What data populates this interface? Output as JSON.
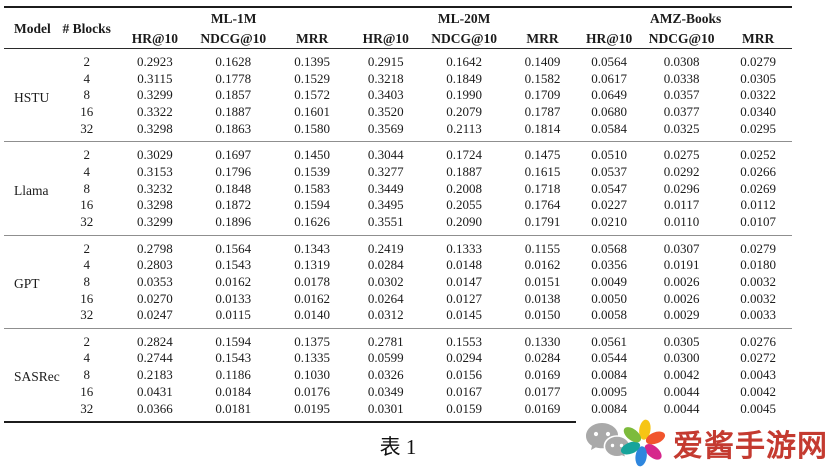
{
  "table": {
    "caption": "表 1",
    "header": {
      "model": "Model",
      "blocks": "# Blocks"
    },
    "datasets": [
      "ML-1M",
      "ML-20M",
      "AMZ-Books"
    ],
    "metrics": [
      "HR@10",
      "NDCG@10",
      "MRR"
    ],
    "groups": [
      {
        "model": "HSTU",
        "rows": [
          {
            "blocks": "2",
            "values": [
              "0.2923",
              "0.1628",
              "0.1395",
              "0.2915",
              "0.1642",
              "0.1409",
              "0.0564",
              "0.0308",
              "0.0279"
            ]
          },
          {
            "blocks": "4",
            "values": [
              "0.3115",
              "0.1778",
              "0.1529",
              "0.3218",
              "0.1849",
              "0.1582",
              "0.0617",
              "0.0338",
              "0.0305"
            ]
          },
          {
            "blocks": "8",
            "values": [
              "0.3299",
              "0.1857",
              "0.1572",
              "0.3403",
              "0.1990",
              "0.1709",
              "0.0649",
              "0.0357",
              "0.0322"
            ]
          },
          {
            "blocks": "16",
            "values": [
              "0.3322",
              "0.1887",
              "0.1601",
              "0.3520",
              "0.2079",
              "0.1787",
              "0.0680",
              "0.0377",
              "0.0340"
            ]
          },
          {
            "blocks": "32",
            "values": [
              "0.3298",
              "0.1863",
              "0.1580",
              "0.3569",
              "0.2113",
              "0.1814",
              "0.0584",
              "0.0325",
              "0.0295"
            ]
          }
        ]
      },
      {
        "model": "Llama",
        "rows": [
          {
            "blocks": "2",
            "values": [
              "0.3029",
              "0.1697",
              "0.1450",
              "0.3044",
              "0.1724",
              "0.1475",
              "0.0510",
              "0.0275",
              "0.0252"
            ]
          },
          {
            "blocks": "4",
            "values": [
              "0.3153",
              "0.1796",
              "0.1539",
              "0.3277",
              "0.1887",
              "0.1615",
              "0.0537",
              "0.0292",
              "0.0266"
            ]
          },
          {
            "blocks": "8",
            "values": [
              "0.3232",
              "0.1848",
              "0.1583",
              "0.3449",
              "0.2008",
              "0.1718",
              "0.0547",
              "0.0296",
              "0.0269"
            ]
          },
          {
            "blocks": "16",
            "values": [
              "0.3298",
              "0.1872",
              "0.1594",
              "0.3495",
              "0.2055",
              "0.1764",
              "0.0227",
              "0.0117",
              "0.0112"
            ]
          },
          {
            "blocks": "32",
            "values": [
              "0.3299",
              "0.1896",
              "0.1626",
              "0.3551",
              "0.2090",
              "0.1791",
              "0.0210",
              "0.0110",
              "0.0107"
            ]
          }
        ]
      },
      {
        "model": "GPT",
        "rows": [
          {
            "blocks": "2",
            "values": [
              "0.2798",
              "0.1564",
              "0.1343",
              "0.2419",
              "0.1333",
              "0.1155",
              "0.0568",
              "0.0307",
              "0.0279"
            ]
          },
          {
            "blocks": "4",
            "values": [
              "0.2803",
              "0.1543",
              "0.1319",
              "0.0284",
              "0.0148",
              "0.0162",
              "0.0356",
              "0.0191",
              "0.0180"
            ]
          },
          {
            "blocks": "8",
            "values": [
              "0.0353",
              "0.0162",
              "0.0178",
              "0.0302",
              "0.0147",
              "0.0151",
              "0.0049",
              "0.0026",
              "0.0032"
            ]
          },
          {
            "blocks": "16",
            "values": [
              "0.0270",
              "0.0133",
              "0.0162",
              "0.0264",
              "0.0127",
              "0.0138",
              "0.0050",
              "0.0026",
              "0.0032"
            ]
          },
          {
            "blocks": "32",
            "values": [
              "0.0247",
              "0.0115",
              "0.0140",
              "0.0312",
              "0.0145",
              "0.0150",
              "0.0058",
              "0.0029",
              "0.0033"
            ]
          }
        ]
      },
      {
        "model": "SASRec",
        "rows": [
          {
            "blocks": "2",
            "values": [
              "0.2824",
              "0.1594",
              "0.1375",
              "0.2781",
              "0.1553",
              "0.1330",
              "0.0561",
              "0.0305",
              "0.0276"
            ]
          },
          {
            "blocks": "4",
            "values": [
              "0.2744",
              "0.1543",
              "0.1335",
              "0.0599",
              "0.0294",
              "0.0284",
              "0.0544",
              "0.0300",
              "0.0272"
            ]
          },
          {
            "blocks": "8",
            "values": [
              "0.2183",
              "0.1186",
              "0.1030",
              "0.0326",
              "0.0156",
              "0.0169",
              "0.0084",
              "0.0042",
              "0.0043"
            ]
          },
          {
            "blocks": "16",
            "values": [
              "0.0431",
              "0.0184",
              "0.0176",
              "0.0349",
              "0.0167",
              "0.0177",
              "0.0095",
              "0.0044",
              "0.0042"
            ]
          },
          {
            "blocks": "32",
            "values": [
              "0.0366",
              "0.0181",
              "0.0195",
              "0.0301",
              "0.0159",
              "0.0169",
              "0.0084",
              "0.0044",
              "0.0045"
            ]
          }
        ]
      }
    ]
  },
  "watermark": {
    "site_name": "爱酱手游网",
    "brand_color": "#c43a30",
    "wechat_icon_color": "#a9a9a9",
    "flower_petal_colors": [
      "#f6c514",
      "#f1552d",
      "#d6268c",
      "#2e86de",
      "#17a49b",
      "#7dbb3c"
    ]
  }
}
